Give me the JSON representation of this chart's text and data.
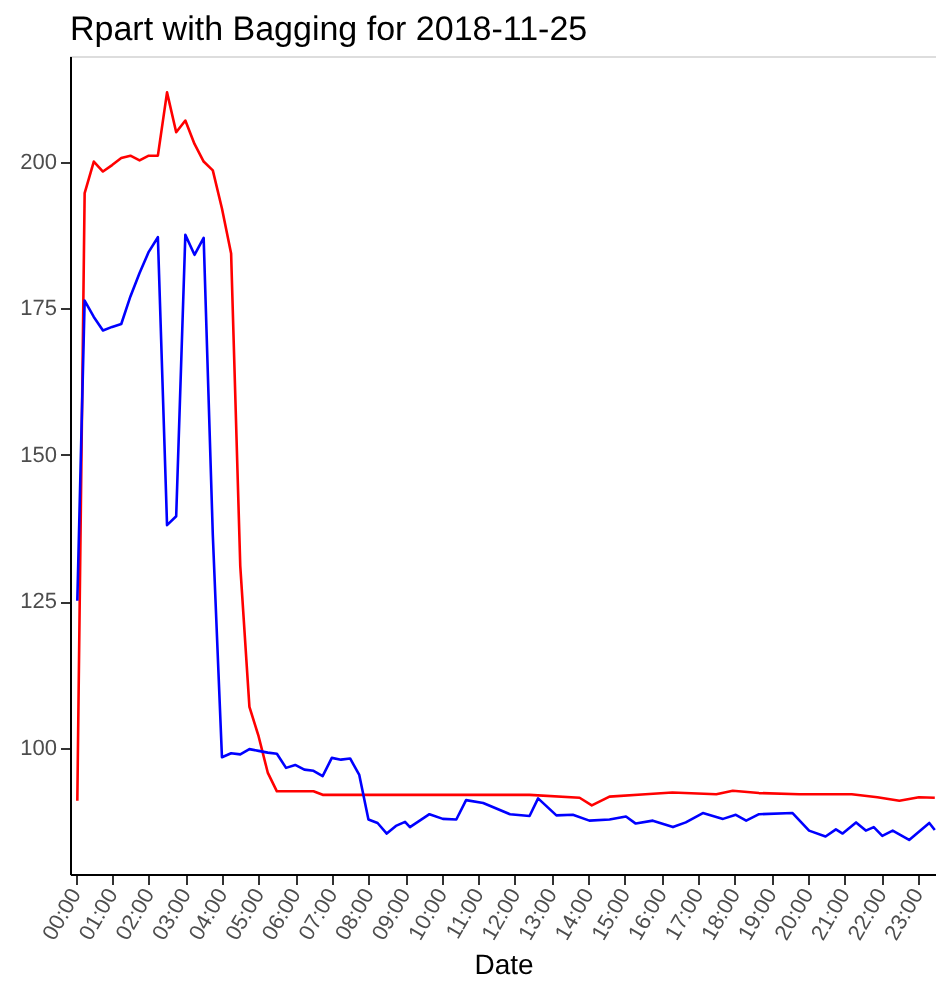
{
  "chart_data": {
    "type": "line",
    "title": "Rpart with Bagging for 2018-11-25",
    "xlabel": "Date",
    "xlim": [
      "2018-11-24T23:51",
      "2018-11-25T23:30"
    ],
    "xticks": [
      {
        "value": "2018-11-25T00:00",
        "label": "00:00"
      },
      {
        "value": "2018-11-25T01:00",
        "label": "01:00"
      },
      {
        "value": "2018-11-25T02:00",
        "label": "02:00"
      },
      {
        "value": "2018-11-25T03:00",
        "label": "03:00"
      },
      {
        "value": "2018-11-25T04:00",
        "label": "04:00"
      },
      {
        "value": "2018-11-25T05:00",
        "label": "05:00"
      },
      {
        "value": "2018-11-25T06:00",
        "label": "06:00"
      },
      {
        "value": "2018-11-25T07:00",
        "label": "07:00"
      },
      {
        "value": "2018-11-25T08:00",
        "label": "08:00"
      },
      {
        "value": "2018-11-25T09:00",
        "label": "09:00"
      },
      {
        "value": "2018-11-25T10:00",
        "label": "10:00"
      },
      {
        "value": "2018-11-25T11:00",
        "label": "11:00"
      },
      {
        "value": "2018-11-25T12:00",
        "label": "12:00"
      },
      {
        "value": "2018-11-25T13:00",
        "label": "13:00"
      },
      {
        "value": "2018-11-25T14:00",
        "label": "14:00"
      },
      {
        "value": "2018-11-25T15:00",
        "label": "15:00"
      },
      {
        "value": "2018-11-25T16:00",
        "label": "16:00"
      },
      {
        "value": "2018-11-25T17:00",
        "label": "17:00"
      },
      {
        "value": "2018-11-25T18:00",
        "label": "18:00"
      },
      {
        "value": "2018-11-25T19:00",
        "label": "19:00"
      },
      {
        "value": "2018-11-25T20:00",
        "label": "20:00"
      },
      {
        "value": "2018-11-25T21:00",
        "label": "21:00"
      },
      {
        "value": "2018-11-25T22:00",
        "label": "22:00"
      },
      {
        "value": "2018-11-25T23:00",
        "label": "23:00"
      }
    ],
    "ylim": [
      78.5,
      218
    ],
    "yticks": [
      100,
      125,
      150,
      175,
      200
    ],
    "grid": false,
    "line_style": "solid",
    "marker": "none",
    "series": [
      {
        "color": "#ff0000",
        "x": [
          "2018-11-25T00:03",
          "2018-11-25T00:15",
          "2018-11-25T00:30",
          "2018-11-25T00:45",
          "2018-11-25T01:00",
          "2018-11-25T01:15",
          "2018-11-25T01:30",
          "2018-11-25T01:45",
          "2018-11-25T02:00",
          "2018-11-25T02:15",
          "2018-11-25T02:30",
          "2018-11-25T02:45",
          "2018-11-25T03:00",
          "2018-11-25T03:15",
          "2018-11-25T03:30",
          "2018-11-25T03:45",
          "2018-11-25T04:00",
          "2018-11-25T04:15",
          "2018-11-25T04:30",
          "2018-11-25T04:45",
          "2018-11-25T05:00",
          "2018-11-25T05:15",
          "2018-11-25T05:30",
          "2018-11-25T06:30",
          "2018-11-25T06:45",
          "2018-11-25T12:24",
          "2018-11-25T13:46",
          "2018-11-25T14:06",
          "2018-11-25T14:35",
          "2018-11-25T15:34",
          "2018-11-25T16:18",
          "2018-11-25T17:30",
          "2018-11-25T17:57",
          "2018-11-25T18:40",
          "2018-11-25T19:46",
          "2018-11-25T21:12",
          "2018-11-25T21:54",
          "2018-11-25T22:30",
          "2018-11-25T23:02",
          "2018-11-25T23:28"
        ],
        "values": [
          91,
          194.6,
          200,
          198.3,
          199.4,
          200.6,
          201,
          200.2,
          201,
          201,
          211.8,
          205,
          207,
          203,
          200,
          198.5,
          192,
          184.3,
          131,
          107,
          102,
          95.8,
          92.6,
          92.6,
          92,
          92,
          91.5,
          90.2,
          91.7,
          92.1,
          92.4,
          92.1,
          92.7,
          92.3,
          92.1,
          92.1,
          91.6,
          91,
          91.6,
          91.5
        ]
      },
      {
        "color": "#0000ff",
        "x": [
          "2018-11-25T00:03",
          "2018-11-25T00:15",
          "2018-11-25T00:30",
          "2018-11-25T00:45",
          "2018-11-25T01:00",
          "2018-11-25T01:15",
          "2018-11-25T01:30",
          "2018-11-25T01:45",
          "2018-11-25T02:00",
          "2018-11-25T02:15",
          "2018-11-25T02:30",
          "2018-11-25T02:45",
          "2018-11-25T03:00",
          "2018-11-25T03:15",
          "2018-11-25T03:30",
          "2018-11-25T03:45",
          "2018-11-25T04:00",
          "2018-11-25T04:15",
          "2018-11-25T04:30",
          "2018-11-25T04:45",
          "2018-11-25T05:00",
          "2018-11-25T05:15",
          "2018-11-25T05:30",
          "2018-11-25T05:45",
          "2018-11-25T06:00",
          "2018-11-25T06:15",
          "2018-11-25T06:30",
          "2018-11-25T06:45",
          "2018-11-25T07:00",
          "2018-11-25T07:15",
          "2018-11-25T07:30",
          "2018-11-25T07:45",
          "2018-11-25T08:00",
          "2018-11-25T08:15",
          "2018-11-25T08:30",
          "2018-11-25T08:45",
          "2018-11-25T09:00",
          "2018-11-25T09:08",
          "2018-11-25T09:40",
          "2018-11-25T10:02",
          "2018-11-25T10:24",
          "2018-11-25T10:40",
          "2018-11-25T11:08",
          "2018-11-25T11:52",
          "2018-11-25T12:24",
          "2018-11-25T12:38",
          "2018-11-25T13:08",
          "2018-11-25T13:35",
          "2018-11-25T14:02",
          "2018-11-25T14:35",
          "2018-11-25T15:02",
          "2018-11-25T15:18",
          "2018-11-25T15:46",
          "2018-11-25T16:19",
          "2018-11-25T16:40",
          "2018-11-25T17:08",
          "2018-11-25T17:41",
          "2018-11-25T18:02",
          "2018-11-25T18:19",
          "2018-11-25T18:40",
          "2018-11-25T19:35",
          "2018-11-25T20:02",
          "2018-11-25T20:29",
          "2018-11-25T20:46",
          "2018-11-25T20:57",
          "2018-11-25T21:19",
          "2018-11-25T21:35",
          "2018-11-25T21:48",
          "2018-11-25T22:02",
          "2018-11-25T22:19",
          "2018-11-25T22:46",
          "2018-11-25T23:19",
          "2018-11-25T23:28"
        ],
        "values": [
          125.1,
          176.3,
          173.5,
          171.2,
          171.8,
          172.3,
          177,
          181,
          184.6,
          187.1,
          138,
          139.5,
          187.5,
          184.1,
          187,
          136.3,
          98.4,
          99.1,
          98.9,
          99.8,
          99.5,
          99.2,
          99,
          96.6,
          97.1,
          96.3,
          96.1,
          95.2,
          98.3,
          98,
          98.2,
          95.4,
          87.8,
          87.2,
          85.4,
          86.7,
          87.4,
          86.5,
          88.7,
          87.9,
          87.8,
          91.1,
          90.6,
          88.7,
          88.4,
          91.4,
          88.5,
          88.6,
          87.6,
          87.8,
          88.3,
          87.1,
          87.6,
          86.5,
          87.3,
          88.9,
          87.9,
          88.6,
          87.6,
          88.7,
          88.9,
          85.9,
          84.9,
          86.1,
          85.4,
          87.3,
          85.9,
          86.5,
          85,
          85.9,
          84.3,
          87.2,
          86
        ]
      }
    ]
  }
}
